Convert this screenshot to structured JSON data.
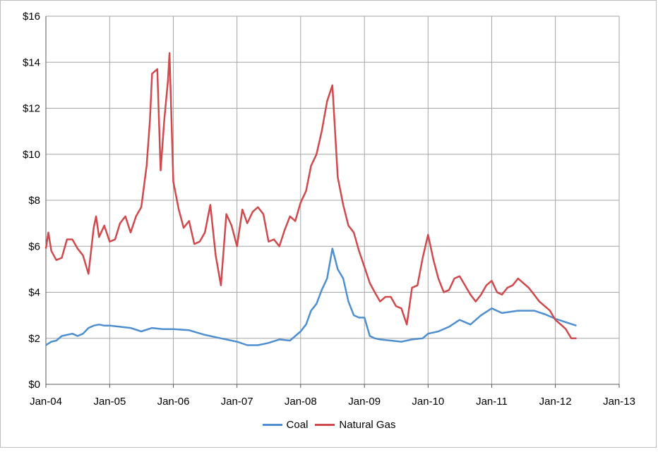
{
  "chart_data": {
    "type": "line",
    "title": "",
    "xlabel": "",
    "ylabel": "",
    "ylim": [
      0,
      16
    ],
    "xlim": [
      "2004-01-01",
      "2013-01-01"
    ],
    "y_ticks": [
      "$0",
      "$2",
      "$4",
      "$6",
      "$8",
      "$10",
      "$12",
      "$14",
      "$16"
    ],
    "y_tick_values": [
      0,
      2,
      4,
      6,
      8,
      10,
      12,
      14,
      16
    ],
    "x_ticks": [
      "Jan-04",
      "Jan-05",
      "Jan-06",
      "Jan-07",
      "Jan-08",
      "Jan-09",
      "Jan-10",
      "Jan-11",
      "Jan-12",
      "Jan-13"
    ],
    "x_tick_dates": [
      "2004-01-01",
      "2005-01-01",
      "2006-01-01",
      "2007-01-01",
      "2008-01-01",
      "2009-01-01",
      "2010-01-01",
      "2011-01-01",
      "2012-01-01",
      "2013-01-01"
    ],
    "grid": true,
    "legend_position": "bottom",
    "series": [
      {
        "name": "Coal",
        "color": "#4f8fd0",
        "points": [
          [
            "2004-01-01",
            1.7
          ],
          [
            "2004-02-01",
            1.85
          ],
          [
            "2004-03-01",
            1.9
          ],
          [
            "2004-04-01",
            2.1
          ],
          [
            "2004-05-01",
            2.15
          ],
          [
            "2004-06-01",
            2.2
          ],
          [
            "2004-07-01",
            2.1
          ],
          [
            "2004-08-01",
            2.2
          ],
          [
            "2004-09-01",
            2.45
          ],
          [
            "2004-10-01",
            2.55
          ],
          [
            "2004-11-01",
            2.6
          ],
          [
            "2004-12-01",
            2.55
          ],
          [
            "2005-01-01",
            2.55
          ],
          [
            "2005-03-01",
            2.5
          ],
          [
            "2005-05-01",
            2.45
          ],
          [
            "2005-07-01",
            2.3
          ],
          [
            "2005-09-01",
            2.45
          ],
          [
            "2005-11-01",
            2.4
          ],
          [
            "2006-01-01",
            2.4
          ],
          [
            "2006-04-01",
            2.35
          ],
          [
            "2006-07-01",
            2.15
          ],
          [
            "2006-10-01",
            2.0
          ],
          [
            "2007-01-01",
            1.85
          ],
          [
            "2007-03-01",
            1.7
          ],
          [
            "2007-05-01",
            1.7
          ],
          [
            "2007-07-01",
            1.8
          ],
          [
            "2007-09-01",
            1.95
          ],
          [
            "2007-11-01",
            1.9
          ],
          [
            "2008-01-01",
            2.3
          ],
          [
            "2008-02-01",
            2.6
          ],
          [
            "2008-03-01",
            3.2
          ],
          [
            "2008-04-01",
            3.5
          ],
          [
            "2008-05-01",
            4.1
          ],
          [
            "2008-06-01",
            4.6
          ],
          [
            "2008-07-01",
            5.9
          ],
          [
            "2008-08-01",
            5.0
          ],
          [
            "2008-09-01",
            4.6
          ],
          [
            "2008-10-01",
            3.6
          ],
          [
            "2008-11-01",
            3.0
          ],
          [
            "2008-12-01",
            2.9
          ],
          [
            "2009-01-01",
            2.9
          ],
          [
            "2009-02-01",
            2.1
          ],
          [
            "2009-03-01",
            2.0
          ],
          [
            "2009-04-01",
            1.95
          ],
          [
            "2009-06-01",
            1.9
          ],
          [
            "2009-08-01",
            1.85
          ],
          [
            "2009-10-01",
            1.95
          ],
          [
            "2009-12-01",
            2.0
          ],
          [
            "2010-01-01",
            2.2
          ],
          [
            "2010-03-01",
            2.3
          ],
          [
            "2010-05-01",
            2.5
          ],
          [
            "2010-07-01",
            2.8
          ],
          [
            "2010-09-01",
            2.6
          ],
          [
            "2010-11-01",
            3.0
          ],
          [
            "2011-01-01",
            3.3
          ],
          [
            "2011-03-01",
            3.1
          ],
          [
            "2011-06-01",
            3.2
          ],
          [
            "2011-09-01",
            3.2
          ],
          [
            "2011-11-01",
            3.05
          ],
          [
            "2012-01-01",
            2.85
          ],
          [
            "2012-03-01",
            2.7
          ],
          [
            "2012-05-01",
            2.55
          ]
        ]
      },
      {
        "name": "Natural Gas",
        "color": "#d0494c",
        "points": [
          [
            "2004-01-01",
            5.9
          ],
          [
            "2004-01-15",
            6.6
          ],
          [
            "2004-02-01",
            5.8
          ],
          [
            "2004-03-01",
            5.4
          ],
          [
            "2004-04-01",
            5.5
          ],
          [
            "2004-05-01",
            6.3
          ],
          [
            "2004-06-01",
            6.3
          ],
          [
            "2004-07-01",
            5.9
          ],
          [
            "2004-08-01",
            5.6
          ],
          [
            "2004-09-01",
            4.8
          ],
          [
            "2004-10-01",
            6.8
          ],
          [
            "2004-10-15",
            7.3
          ],
          [
            "2004-11-01",
            6.4
          ],
          [
            "2004-12-01",
            6.9
          ],
          [
            "2005-01-01",
            6.2
          ],
          [
            "2005-02-01",
            6.3
          ],
          [
            "2005-03-01",
            7.0
          ],
          [
            "2005-04-01",
            7.3
          ],
          [
            "2005-05-01",
            6.6
          ],
          [
            "2005-06-01",
            7.3
          ],
          [
            "2005-07-01",
            7.7
          ],
          [
            "2005-08-01",
            9.5
          ],
          [
            "2005-08-20",
            11.5
          ],
          [
            "2005-09-01",
            13.5
          ],
          [
            "2005-10-01",
            13.7
          ],
          [
            "2005-10-20",
            9.3
          ],
          [
            "2005-11-10",
            11.5
          ],
          [
            "2005-12-01",
            13.2
          ],
          [
            "2005-12-10",
            14.4
          ],
          [
            "2006-01-01",
            8.8
          ],
          [
            "2006-02-01",
            7.6
          ],
          [
            "2006-03-01",
            6.8
          ],
          [
            "2006-04-01",
            7.1
          ],
          [
            "2006-05-01",
            6.1
          ],
          [
            "2006-06-01",
            6.2
          ],
          [
            "2006-07-01",
            6.6
          ],
          [
            "2006-08-01",
            7.8
          ],
          [
            "2006-09-01",
            5.6
          ],
          [
            "2006-10-01",
            4.3
          ],
          [
            "2006-11-01",
            7.4
          ],
          [
            "2006-12-01",
            6.9
          ],
          [
            "2007-01-01",
            6.0
          ],
          [
            "2007-02-01",
            7.6
          ],
          [
            "2007-03-01",
            7.0
          ],
          [
            "2007-04-01",
            7.5
          ],
          [
            "2007-05-01",
            7.7
          ],
          [
            "2007-06-01",
            7.4
          ],
          [
            "2007-07-01",
            6.2
          ],
          [
            "2007-08-01",
            6.3
          ],
          [
            "2007-09-01",
            6.0
          ],
          [
            "2007-10-01",
            6.7
          ],
          [
            "2007-11-01",
            7.3
          ],
          [
            "2007-12-01",
            7.1
          ],
          [
            "2008-01-01",
            7.9
          ],
          [
            "2008-02-01",
            8.4
          ],
          [
            "2008-03-01",
            9.5
          ],
          [
            "2008-04-01",
            10.0
          ],
          [
            "2008-05-01",
            11.0
          ],
          [
            "2008-06-01",
            12.3
          ],
          [
            "2008-07-01",
            13.0
          ],
          [
            "2008-08-01",
            9.0
          ],
          [
            "2008-09-01",
            7.8
          ],
          [
            "2008-10-01",
            6.9
          ],
          [
            "2008-11-01",
            6.6
          ],
          [
            "2008-12-01",
            5.8
          ],
          [
            "2009-01-01",
            5.1
          ],
          [
            "2009-02-01",
            4.4
          ],
          [
            "2009-03-01",
            4.0
          ],
          [
            "2009-04-01",
            3.6
          ],
          [
            "2009-05-01",
            3.8
          ],
          [
            "2009-06-01",
            3.8
          ],
          [
            "2009-07-01",
            3.4
          ],
          [
            "2009-08-01",
            3.3
          ],
          [
            "2009-09-01",
            2.6
          ],
          [
            "2009-10-01",
            4.2
          ],
          [
            "2009-11-01",
            4.3
          ],
          [
            "2009-12-01",
            5.5
          ],
          [
            "2010-01-01",
            6.5
          ],
          [
            "2010-02-01",
            5.4
          ],
          [
            "2010-03-01",
            4.6
          ],
          [
            "2010-04-01",
            4.0
          ],
          [
            "2010-05-01",
            4.1
          ],
          [
            "2010-06-01",
            4.6
          ],
          [
            "2010-07-01",
            4.7
          ],
          [
            "2010-08-01",
            4.3
          ],
          [
            "2010-09-01",
            3.9
          ],
          [
            "2010-10-01",
            3.6
          ],
          [
            "2010-11-01",
            3.9
          ],
          [
            "2010-12-01",
            4.3
          ],
          [
            "2011-01-01",
            4.5
          ],
          [
            "2011-02-01",
            4.0
          ],
          [
            "2011-03-01",
            3.9
          ],
          [
            "2011-04-01",
            4.2
          ],
          [
            "2011-05-01",
            4.3
          ],
          [
            "2011-06-01",
            4.6
          ],
          [
            "2011-07-01",
            4.4
          ],
          [
            "2011-08-01",
            4.2
          ],
          [
            "2011-09-01",
            3.9
          ],
          [
            "2011-10-01",
            3.6
          ],
          [
            "2011-11-01",
            3.4
          ],
          [
            "2011-12-01",
            3.2
          ],
          [
            "2012-01-01",
            2.8
          ],
          [
            "2012-02-01",
            2.6
          ],
          [
            "2012-03-01",
            2.4
          ],
          [
            "2012-04-01",
            2.0
          ],
          [
            "2012-05-01",
            2.0
          ]
        ]
      }
    ]
  }
}
